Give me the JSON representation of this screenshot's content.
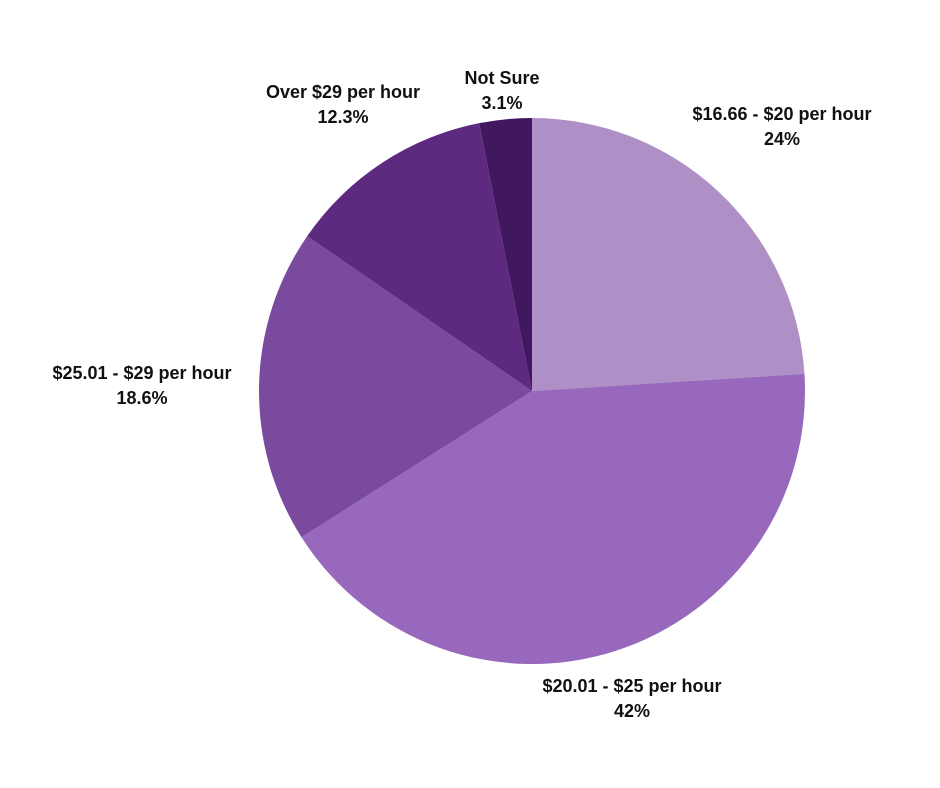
{
  "chart_data": {
    "type": "pie",
    "title": "",
    "slices": [
      {
        "category": "$16.66 - $20 per hour",
        "value": 24,
        "value_label": "24%",
        "color": "#ae90c6"
      },
      {
        "category": "$20.01 - $25 per hour",
        "value": 42,
        "value_label": "42%",
        "color": "#9768bb"
      },
      {
        "category": "$25.01 - $29 per hour",
        "value": 18.6,
        "value_label": "18.6%",
        "color": "#7a4a9e"
      },
      {
        "category": "Over $29 per hour",
        "value": 12.3,
        "value_label": "12.3%",
        "color": "#5d2a80"
      },
      {
        "category": "Not Sure",
        "value": 3.1,
        "value_label": "3.1%",
        "color": "#41175f"
      }
    ],
    "start_angle_deg": 0,
    "direction": "clockwise",
    "legend": "none"
  }
}
